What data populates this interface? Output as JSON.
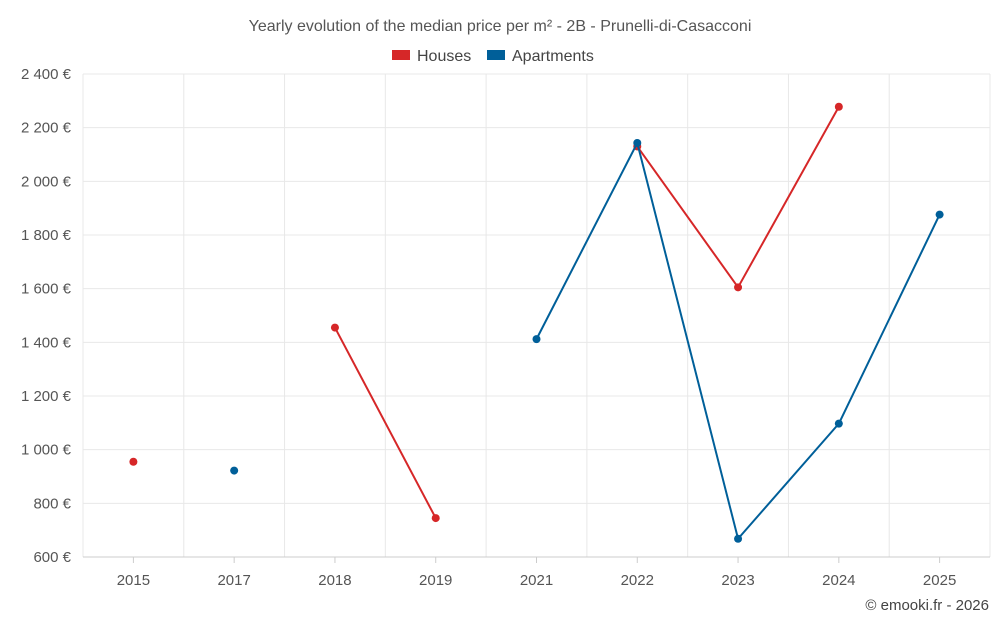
{
  "chart_data": {
    "type": "line",
    "title": "Yearly evolution of the median price per m² - 2B - Prunelli-di-Casacconi",
    "categories": [
      "2015",
      "2017",
      "2018",
      "2019",
      "2021",
      "2022",
      "2023",
      "2024",
      "2025"
    ],
    "series": [
      {
        "name": "Houses",
        "color": "#d62728",
        "values": [
          955,
          null,
          1455,
          745,
          null,
          2130,
          1605,
          2278,
          null
        ]
      },
      {
        "name": "Apartments",
        "color": "#005f99",
        "values": [
          null,
          922,
          null,
          null,
          1412,
          2143,
          668,
          1097,
          1876
        ]
      }
    ],
    "ylim": [
      600,
      2400
    ],
    "y_ticks": [
      600,
      800,
      1000,
      1200,
      1400,
      1600,
      1800,
      2000,
      2200,
      2400
    ],
    "y_unit": "€",
    "grid": true,
    "legend_position": "top-center",
    "credit": "© emooki.fr - 2026"
  }
}
